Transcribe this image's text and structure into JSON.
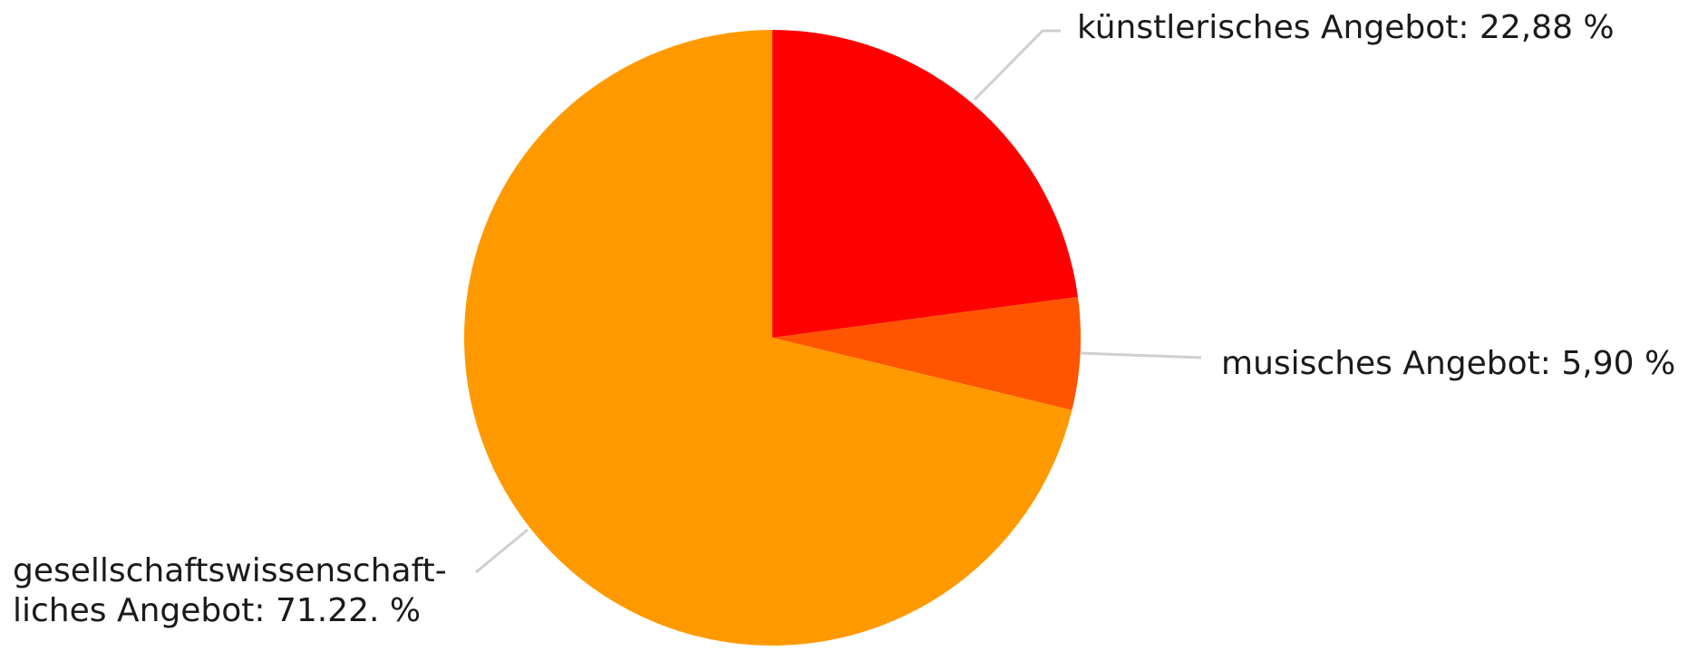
{
  "chart_data": {
    "type": "pie",
    "categories": [
      "künstlerisches Angebot",
      "musisches Angebot",
      "gesellschaftswissenschaftliches Angebot"
    ],
    "values": [
      22.88,
      5.9,
      71.22
    ],
    "colors": [
      "#ff0000",
      "#ff5500",
      "#ff9900"
    ],
    "start": "12 o'clock",
    "direction": "clockwise",
    "labels": [
      {
        "lines": [
          "künstlerisches Angebot: 22,88 %"
        ]
      },
      {
        "lines": [
          "musisches Angebot: 5,90 %"
        ]
      },
      {
        "lines": [
          "gesellschaftswissenschaft-",
          "liches Angebot: 71.22. %"
        ]
      }
    ]
  }
}
